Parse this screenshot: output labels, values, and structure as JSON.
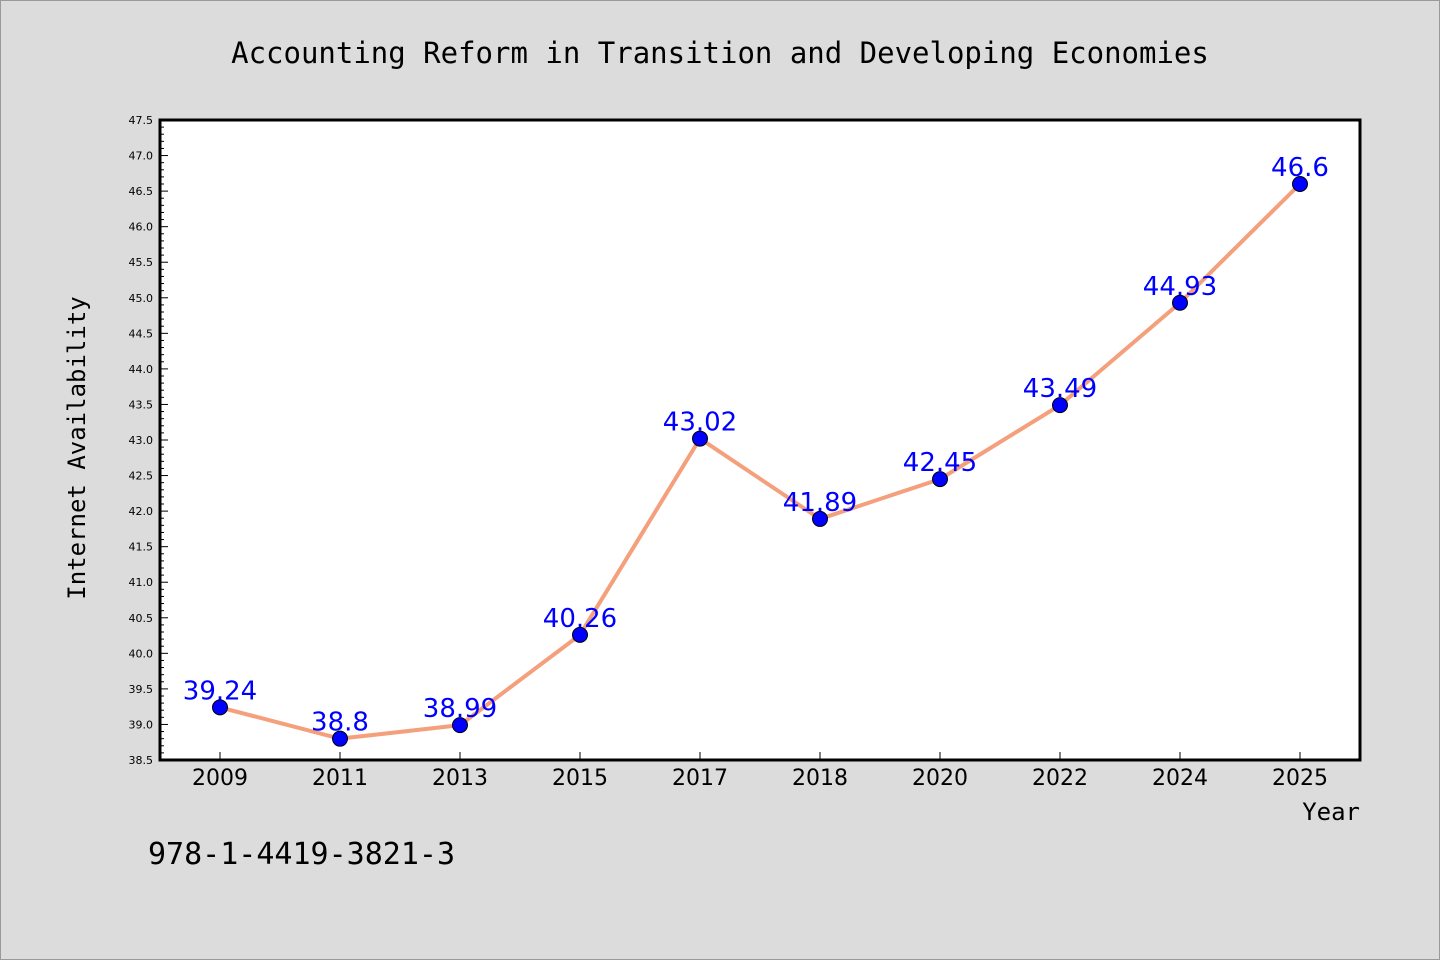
{
  "chart_data": {
    "type": "line",
    "title": "Accounting Reform in Transition and Developing Economies",
    "xlabel": "Year",
    "ylabel": "Internet Availability",
    "categories": [
      "2009",
      "2011",
      "2013",
      "2015",
      "2017",
      "2018",
      "2020",
      "2022",
      "2024",
      "2025"
    ],
    "series": [
      {
        "values": [
          39.24,
          38.8,
          38.99,
          40.26,
          43.02,
          41.89,
          42.45,
          43.49,
          44.93,
          46.6
        ],
        "labels": [
          "39.24",
          "38.8",
          "38.99",
          "40.26",
          "43.02",
          "41.89",
          "42.45",
          "43.49",
          "44.93",
          "46.6"
        ],
        "line_color": "#f4a07c",
        "marker_color": "#0000ff"
      }
    ],
    "ylim": [
      38.5,
      47.5
    ],
    "yticks": [
      "38.5",
      "39.0",
      "39.5",
      "40.0",
      "40.5",
      "41.0",
      "41.5",
      "42.0",
      "42.5",
      "43.0",
      "43.5",
      "44.0",
      "44.5",
      "45.0",
      "45.5",
      "46.0",
      "46.5",
      "47.0",
      "47.5"
    ],
    "grid": false,
    "legend": "none",
    "label_color": "#0000ff"
  },
  "annotation": {
    "isbn": "978-1-4419-3821-3"
  },
  "style": {
    "background": "#dcdcdc",
    "plot_background": "#ffffff"
  }
}
